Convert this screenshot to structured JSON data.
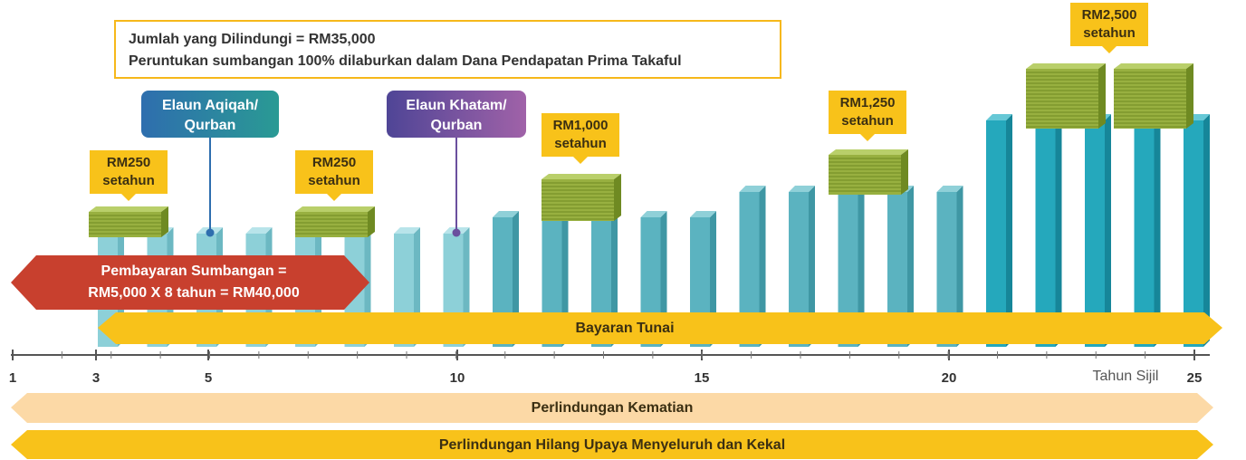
{
  "info_box": {
    "lines": [
      "Jumlah yang Dilindungi = RM35,000",
      "Peruntukan sumbangan 100% dilaburkan dalam Dana Pendapatan Prima Takaful"
    ]
  },
  "callouts": [
    {
      "lines": [
        "Elaun Aqiqah/",
        "Qurban"
      ]
    },
    {
      "lines": [
        "Elaun Khatam/",
        "Qurban"
      ]
    }
  ],
  "payout_labels": [
    {
      "lines": [
        "RM250",
        "setahun"
      ]
    },
    {
      "lines": [
        "RM250",
        "setahun"
      ]
    },
    {
      "lines": [
        "RM1,000",
        "setahun"
      ]
    },
    {
      "lines": [
        "RM1,250",
        "setahun"
      ]
    },
    {
      "lines": [
        "RM2,500",
        "setahun"
      ]
    }
  ],
  "contribution": {
    "lines": [
      "Pembayaran Sumbangan =",
      "RM5,000 X 8 tahun = RM40,000"
    ]
  },
  "cash_payout": "Bayaran Tunai",
  "axis": {
    "ticks": [
      "1",
      "3",
      "5",
      "10",
      "15",
      "20",
      "25"
    ],
    "label": "Tahun Sijil"
  },
  "coverage": [
    "Perlindungan Kematian",
    "Perlindungan Hilang Upaya Menyeluruh dan Kekal"
  ]
}
